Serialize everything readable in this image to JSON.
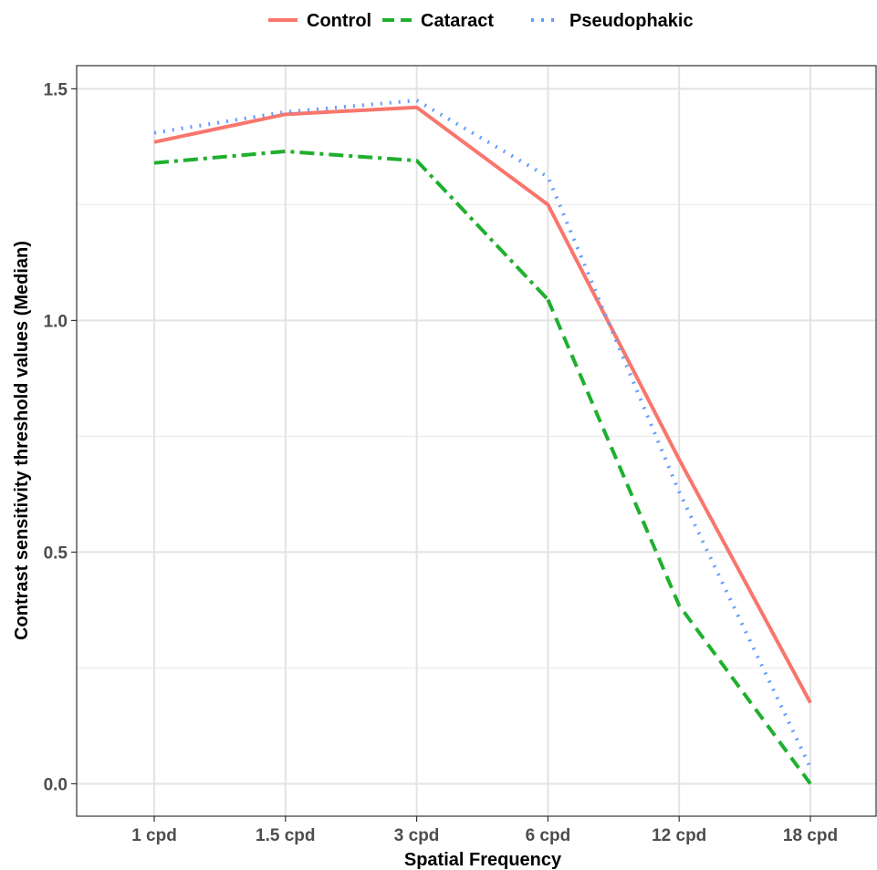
{
  "chart_data": {
    "type": "line",
    "xlabel": "Spatial Frequency",
    "ylabel": "Contrast sensitivity threshold values (Median)",
    "categories": [
      "1 cpd",
      "1.5 cpd",
      "3 cpd",
      "6 cpd",
      "12 cpd",
      "18 cpd"
    ],
    "ylim": [
      -0.07,
      1.55
    ],
    "yticks": [
      0.0,
      0.5,
      1.0,
      1.5
    ],
    "ytick_labels": [
      "0.0",
      "0.5",
      "1.0",
      "1.5"
    ],
    "grid": true,
    "legend_position": "top",
    "series": [
      {
        "name": "Control",
        "color": "#F8766D",
        "dash": "solid",
        "values": [
          1.385,
          1.445,
          1.46,
          1.25,
          0.7,
          0.175
        ]
      },
      {
        "name": "Cataract",
        "color": "#1FAF2E",
        "dash": "dashdot-dash",
        "values": [
          1.34,
          1.365,
          1.345,
          1.045,
          0.385,
          0.0
        ]
      },
      {
        "name": "Pseudophakic",
        "color": "#619CFF",
        "dash": "dotted",
        "values": [
          1.405,
          1.45,
          1.475,
          1.31,
          0.63,
          0.035
        ]
      }
    ]
  }
}
